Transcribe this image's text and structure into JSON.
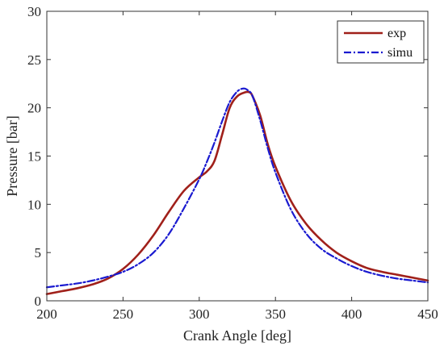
{
  "chart_data": {
    "type": "line",
    "title": "",
    "xlabel": "Crank Angle [deg]",
    "ylabel": "Pressure [bar]",
    "xlim": [
      200,
      450
    ],
    "ylim": [
      0,
      30
    ],
    "xticks": [
      200,
      250,
      300,
      350,
      400,
      450
    ],
    "yticks": [
      0,
      5,
      10,
      15,
      20,
      25,
      30
    ],
    "grid": false,
    "legend_position": "top-right",
    "series": [
      {
        "name": "exp",
        "color": "#A0201A",
        "style": "solid",
        "x": [
          200,
          210,
          220,
          230,
          240,
          250,
          260,
          270,
          280,
          290,
          300,
          305,
          310,
          315,
          320,
          325,
          330,
          333,
          335,
          340,
          345,
          350,
          360,
          370,
          380,
          390,
          400,
          410,
          420,
          430,
          440,
          450
        ],
        "y": [
          0.7,
          1.0,
          1.3,
          1.7,
          2.3,
          3.3,
          4.8,
          6.8,
          9.2,
          11.4,
          12.8,
          13.4,
          14.5,
          17.2,
          20.0,
          21.2,
          21.6,
          21.6,
          21.2,
          19.2,
          16.2,
          13.9,
          10.4,
          8.0,
          6.3,
          5.0,
          4.1,
          3.4,
          3.0,
          2.7,
          2.4,
          2.1
        ]
      },
      {
        "name": "simu",
        "color": "#1A1AD0",
        "style": "dashdot",
        "x": [
          200,
          210,
          220,
          230,
          240,
          250,
          260,
          270,
          280,
          290,
          300,
          305,
          310,
          315,
          320,
          325,
          329,
          332,
          335,
          340,
          345,
          350,
          360,
          370,
          380,
          390,
          400,
          410,
          420,
          430,
          440,
          450
        ],
        "y": [
          1.4,
          1.6,
          1.8,
          2.1,
          2.5,
          3.0,
          3.8,
          5.0,
          6.9,
          9.6,
          12.6,
          14.4,
          16.4,
          18.6,
          20.6,
          21.7,
          22.0,
          21.8,
          21.2,
          18.7,
          15.8,
          13.3,
          9.5,
          7.0,
          5.4,
          4.4,
          3.6,
          3.0,
          2.6,
          2.3,
          2.1,
          1.9
        ]
      }
    ]
  }
}
